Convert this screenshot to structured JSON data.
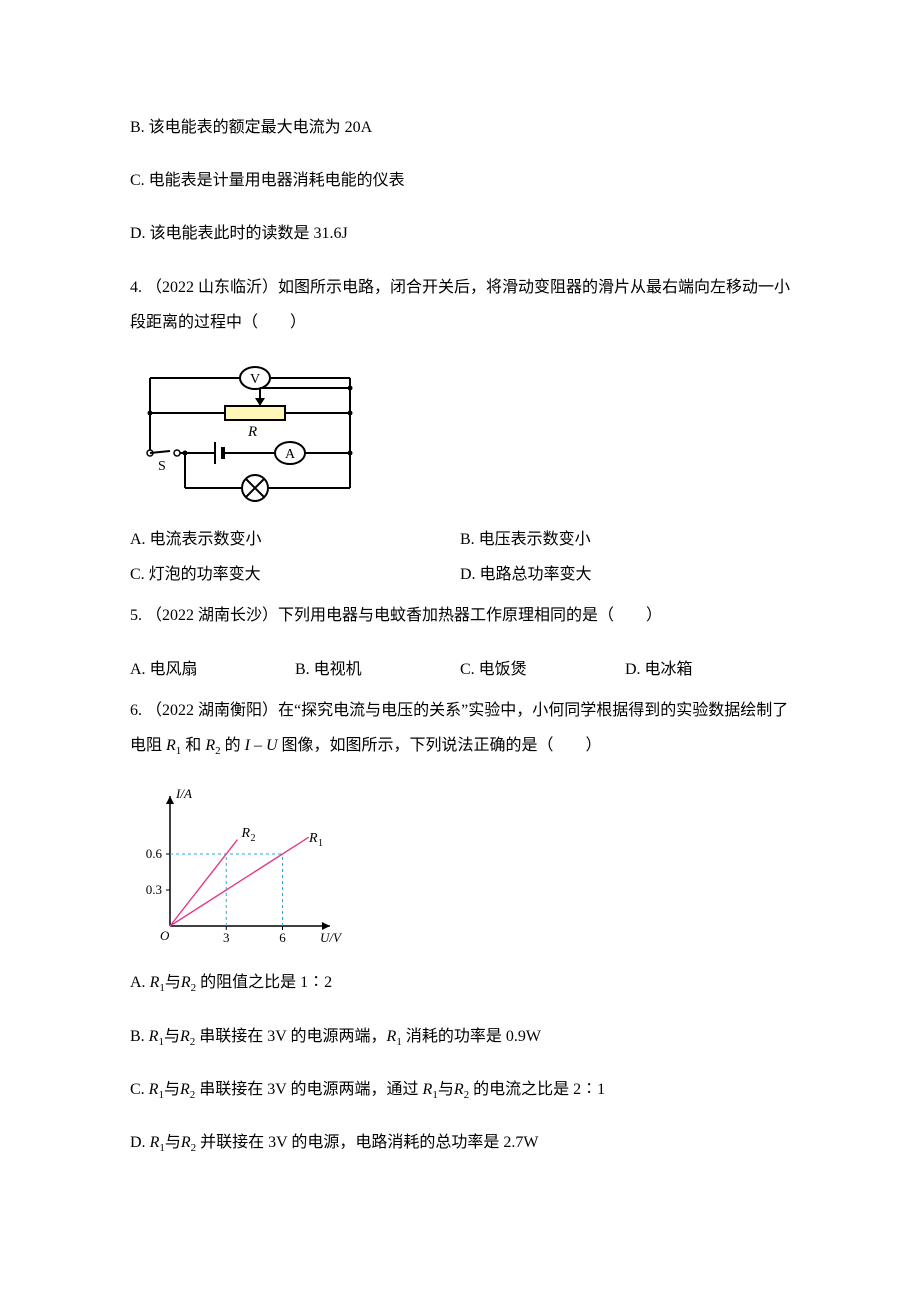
{
  "q3": {
    "B": "B.  该电能表的额定最大电流为 20A",
    "C": "C.  电能表是计量用电器消耗电能的仪表",
    "D": "D.  该电能表此时的读数是 31.6J"
  },
  "q4": {
    "stem": "4. （2022 山东临沂）如图所示电路，闭合开关后，将滑动变阻器的滑片从最右端向左移动一小段距离的过程中（　　）",
    "A": "A.  电流表示数变小",
    "B": "B.  电压表示数变小",
    "C": "C.  灯泡的功率变大",
    "D": "D.  电路总功率变大",
    "circuit": {
      "labels": {
        "V": "V",
        "A": "A",
        "R": "R",
        "S": "S"
      },
      "colors": {
        "wire": "#000000",
        "rheostat_fill": "#fef7b7",
        "lamp_fill": "#ffffff",
        "meter_fill": "#ffffff"
      }
    }
  },
  "q5": {
    "stem": "5. （2022 湖南长沙）下列用电器与电蚊香加热器工作原理相同的是（　　）",
    "A": "A.  电风扇",
    "B": "B.  电视机",
    "C": "C.  电饭煲",
    "D": "D.  电冰箱"
  },
  "q6": {
    "stem_a": "6. （2022 湖南衡阳）在“探究电流与电压的关系”实验中，小何同学根据得到的实验数据绘制了电阻",
    "stem_b": "和",
    "stem_c": "的",
    "stem_d": " 图像，如图所示，下列说法正确的是（　　）",
    "R1_html": "R<span class=\"sub\">1</span>",
    "R2_html": "R<span class=\"sub\">2</span>",
    "IU_html": "<span class=\"ital\">I</span> – <span class=\"ital\">U</span>",
    "A_pre": "A.  ",
    "A_body": " 的阻值之比是 1∶2",
    "B_pre": "B.  ",
    "B_mid": " 串联接在 3V 的电源两端，",
    "B_end": " 消耗的功率是 0.9W",
    "C_pre": "C.  ",
    "C_mid": " 串联接在 3V 的电源两端，通过 ",
    "C_end": " 的电流之比是 2∶1",
    "D_pre": "D.  ",
    "D_mid": " 并联接在 3V 的电源，电路消耗的总功率是 2.7W",
    "and": "与",
    "graph": {
      "type": "line",
      "xlabel": "U/V",
      "ylabel": "I/A",
      "x_ticks": [
        3,
        6
      ],
      "y_ticks": [
        0.3,
        0.6
      ],
      "xlim": [
        0,
        8
      ],
      "ylim": [
        0,
        1.0
      ],
      "series": [
        {
          "name": "R2",
          "label": "R₂",
          "points": [
            [
              0,
              0
            ],
            [
              3.6,
              0.72
            ]
          ],
          "color": "#e33a8b",
          "width": 1.4
        },
        {
          "name": "R1",
          "label": "R₁",
          "points": [
            [
              0,
              0
            ],
            [
              7.4,
              0.74
            ]
          ],
          "color": "#e33a8b",
          "width": 1.4
        }
      ],
      "guides": [
        {
          "from": [
            0,
            0.6
          ],
          "to": [
            6,
            0.6
          ]
        },
        {
          "from": [
            3,
            0
          ],
          "to": [
            3,
            0.6
          ]
        },
        {
          "from": [
            6,
            0
          ],
          "to": [
            6,
            0.6
          ]
        }
      ],
      "axis_color": "#000000",
      "tick_color": "#000000",
      "guide_color": "#2aa7dd",
      "background": "#ffffff",
      "font_size_pt": 12
    }
  }
}
